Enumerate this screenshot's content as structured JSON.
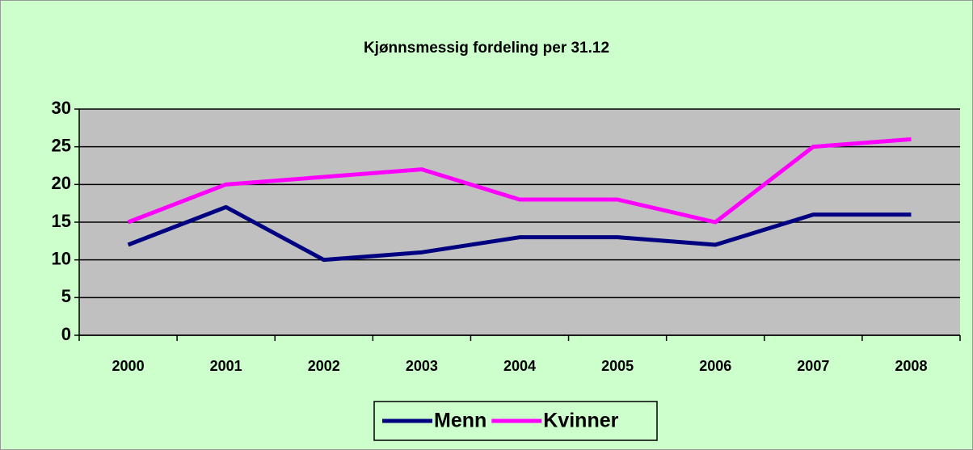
{
  "chart_data": {
    "type": "line",
    "title": "Kjønnsmessig fordeling per 31.12",
    "categories": [
      "2000",
      "2001",
      "2002",
      "2003",
      "2004",
      "2005",
      "2006",
      "2007",
      "2008"
    ],
    "series": [
      {
        "name": "Menn",
        "color": "#000080",
        "values": [
          12,
          17,
          10,
          11,
          13,
          13,
          12,
          16,
          16
        ]
      },
      {
        "name": "Kvinner",
        "color": "#ff00ff",
        "values": [
          15,
          20,
          21,
          22,
          18,
          18,
          15,
          25,
          26
        ]
      }
    ],
    "ylim": [
      0,
      30
    ],
    "yticks": [
      0,
      5,
      10,
      15,
      20,
      25,
      30
    ],
    "grid": true,
    "legend": "bottom"
  }
}
